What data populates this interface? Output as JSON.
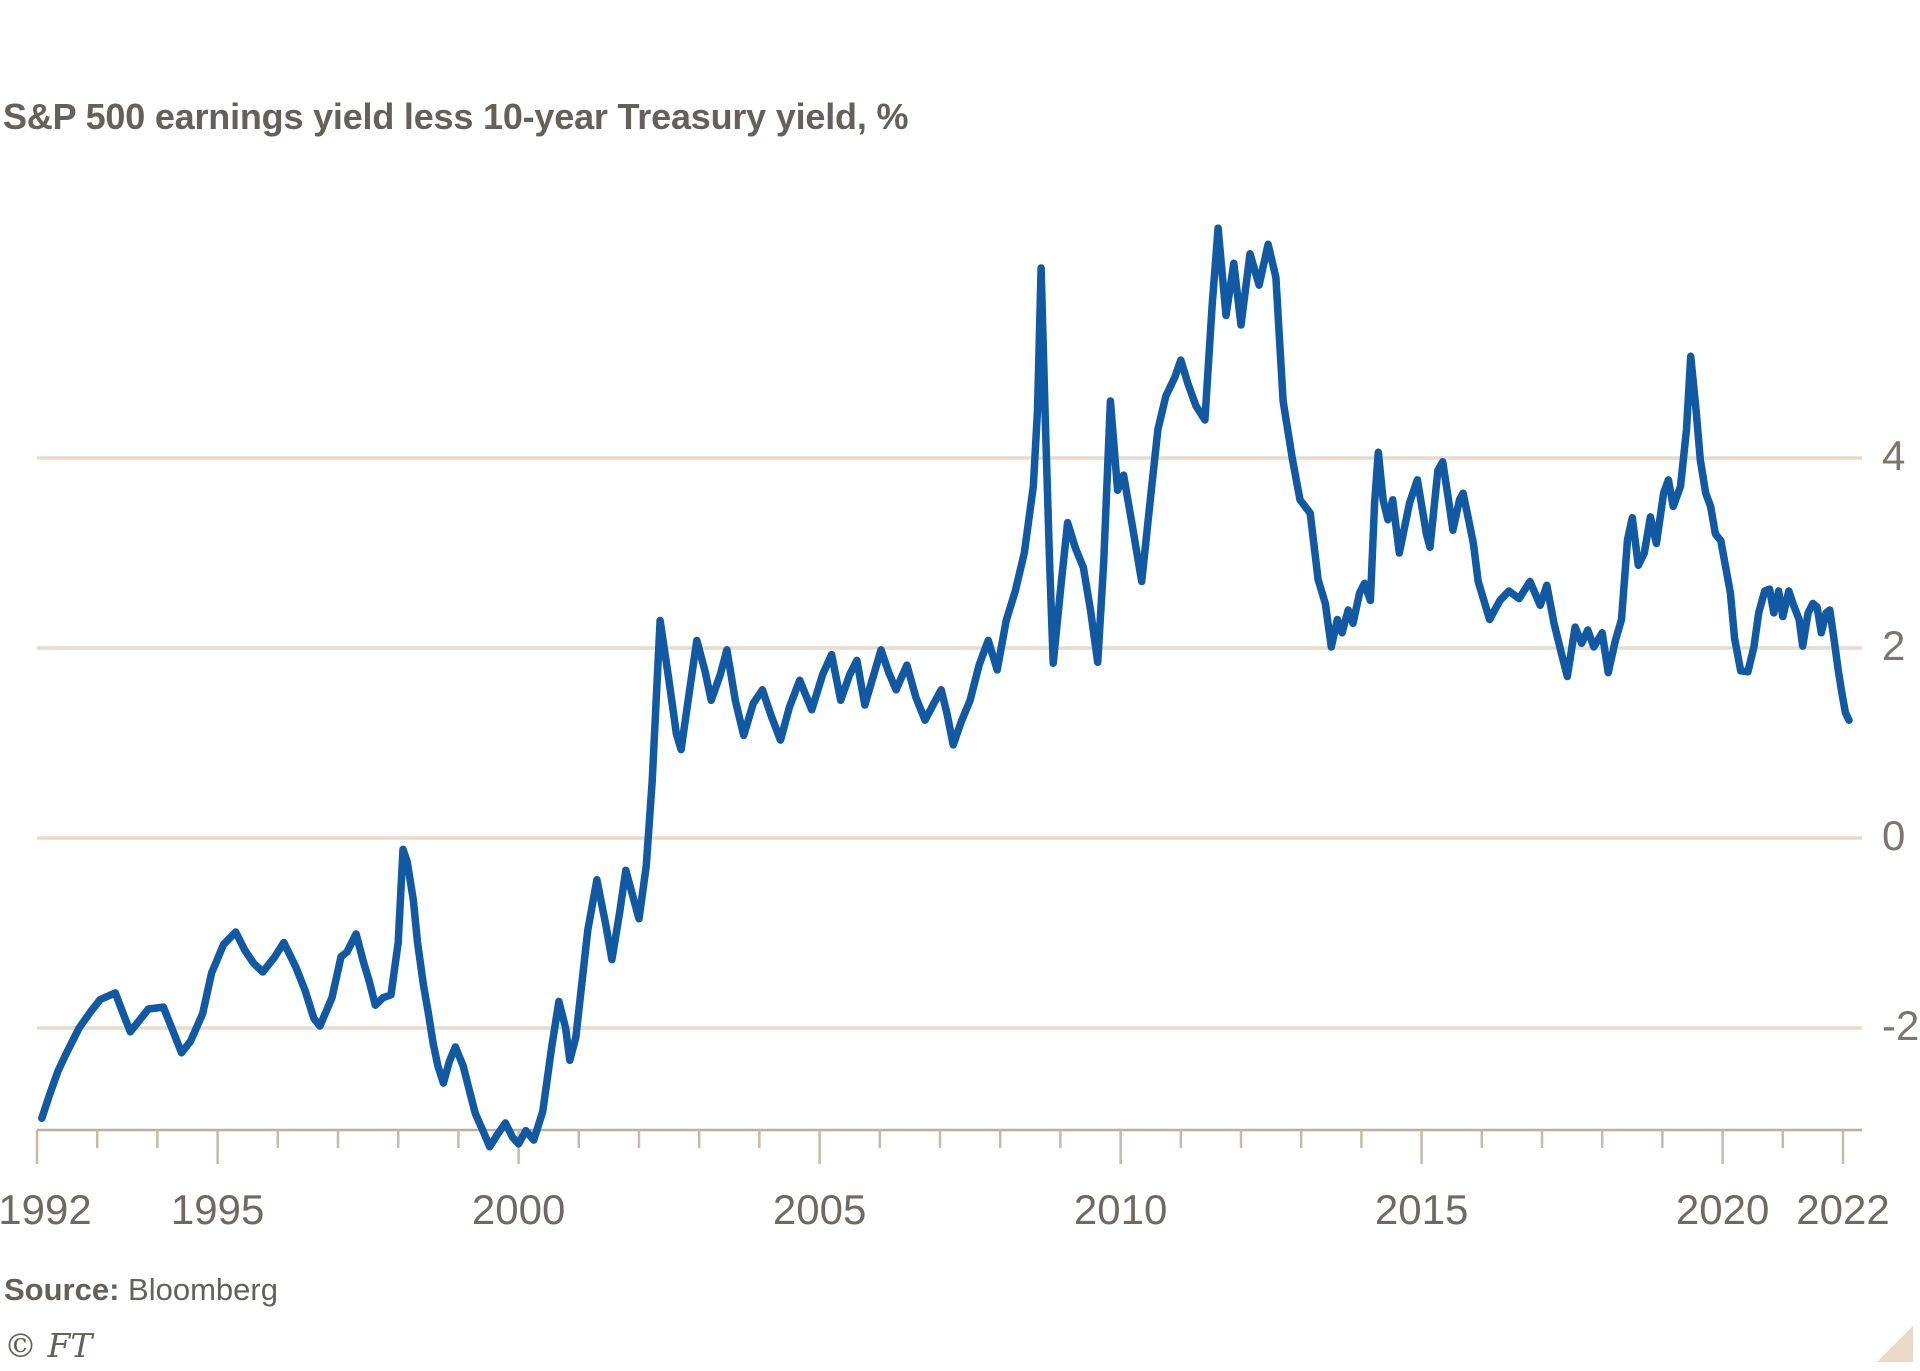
{
  "header": {
    "title": "S&P 500 earnings yield less 10-year Treasury yield, %"
  },
  "footer": {
    "source_prefix": "Source:",
    "source_name": "Bloomberg",
    "ft_mark": "© FT"
  },
  "colors": {
    "background": "#ffffff",
    "line": "#1259a3",
    "gridline": "#e7dccc",
    "axis": "#b9ae9f",
    "tick": "#c6bbab",
    "title_text": "#66605b",
    "label_text": "#6f6962",
    "corner_triangle": "#ead9c8"
  },
  "chart_data": {
    "type": "line",
    "title": "S&P 500 earnings yield less 10-year Treasury yield, %",
    "xlabel": "",
    "ylabel": "%",
    "legend": "none",
    "grid": "horizontal-only",
    "xlim": [
      1992,
      2022.4
    ],
    "ylim": [
      -3.05,
      6.6
    ],
    "y_axis": {
      "side": "right",
      "gridline_values": [
        4,
        2,
        0,
        -2
      ],
      "labels": [
        "4",
        "2",
        "0",
        "-2"
      ]
    },
    "x_axis": {
      "tick_years_minor": [
        1992,
        1993,
        1994,
        1995,
        1996,
        1997,
        1998,
        1999,
        2000,
        2001,
        2002,
        2003,
        2004,
        2005,
        2006,
        2007,
        2008,
        2009,
        2010,
        2011,
        2012,
        2013,
        2014,
        2015,
        2016,
        2017,
        2018,
        2019,
        2020,
        2021,
        2022
      ],
      "tick_years_major": [
        1992,
        1995,
        2000,
        2005,
        2010,
        2015,
        2020,
        2022
      ],
      "labels": [
        "1992",
        "1995",
        "2000",
        "2005",
        "2010",
        "2015",
        "2020",
        "2022"
      ],
      "label_years": [
        1992,
        1995,
        2000,
        2005,
        2010,
        2015,
        2020,
        2022
      ]
    },
    "series": [
      {
        "name": "S&P 500 earnings yield less 10-year Treasury yield (%)",
        "points": [
          [
            1992.08,
            -2.95
          ],
          [
            1992.2,
            -2.72
          ],
          [
            1992.35,
            -2.45
          ],
          [
            1992.5,
            -2.25
          ],
          [
            1992.7,
            -2.0
          ],
          [
            1992.9,
            -1.82
          ],
          [
            1993.05,
            -1.7
          ],
          [
            1993.3,
            -1.63
          ],
          [
            1993.45,
            -1.88
          ],
          [
            1993.55,
            -2.04
          ],
          [
            1993.7,
            -1.92
          ],
          [
            1993.85,
            -1.8
          ],
          [
            1994.1,
            -1.78
          ],
          [
            1994.25,
            -2.02
          ],
          [
            1994.4,
            -2.26
          ],
          [
            1994.55,
            -2.14
          ],
          [
            1994.75,
            -1.85
          ],
          [
            1994.9,
            -1.42
          ],
          [
            1995.1,
            -1.12
          ],
          [
            1995.3,
            -0.99
          ],
          [
            1995.45,
            -1.18
          ],
          [
            1995.6,
            -1.32
          ],
          [
            1995.75,
            -1.41
          ],
          [
            1995.95,
            -1.25
          ],
          [
            1996.1,
            -1.1
          ],
          [
            1996.3,
            -1.36
          ],
          [
            1996.45,
            -1.6
          ],
          [
            1996.6,
            -1.9
          ],
          [
            1996.7,
            -1.98
          ],
          [
            1996.9,
            -1.68
          ],
          [
            1997.05,
            -1.25
          ],
          [
            1997.15,
            -1.2
          ],
          [
            1997.3,
            -1.01
          ],
          [
            1997.42,
            -1.3
          ],
          [
            1997.52,
            -1.51
          ],
          [
            1997.62,
            -1.76
          ],
          [
            1997.75,
            -1.68
          ],
          [
            1997.88,
            -1.65
          ],
          [
            1998.0,
            -1.1
          ],
          [
            1998.08,
            -0.12
          ],
          [
            1998.15,
            -0.25
          ],
          [
            1998.25,
            -0.65
          ],
          [
            1998.32,
            -1.1
          ],
          [
            1998.42,
            -1.55
          ],
          [
            1998.5,
            -1.84
          ],
          [
            1998.58,
            -2.16
          ],
          [
            1998.66,
            -2.4
          ],
          [
            1998.75,
            -2.58
          ],
          [
            1998.85,
            -2.35
          ],
          [
            1998.95,
            -2.2
          ],
          [
            1999.08,
            -2.4
          ],
          [
            1999.18,
            -2.65
          ],
          [
            1999.28,
            -2.9
          ],
          [
            1999.42,
            -3.1
          ],
          [
            1999.52,
            -3.25
          ],
          [
            1999.65,
            -3.12
          ],
          [
            1999.78,
            -3.0
          ],
          [
            1999.9,
            -3.15
          ],
          [
            2000.0,
            -3.22
          ],
          [
            2000.12,
            -3.08
          ],
          [
            2000.25,
            -3.18
          ],
          [
            2000.4,
            -2.88
          ],
          [
            2000.55,
            -2.2
          ],
          [
            2000.67,
            -1.72
          ],
          [
            2000.78,
            -2.0
          ],
          [
            2000.85,
            -2.34
          ],
          [
            2000.95,
            -2.1
          ],
          [
            2001.15,
            -0.97
          ],
          [
            2001.3,
            -0.44
          ],
          [
            2001.45,
            -0.92
          ],
          [
            2001.55,
            -1.28
          ],
          [
            2001.68,
            -0.78
          ],
          [
            2001.78,
            -0.34
          ],
          [
            2001.9,
            -0.62
          ],
          [
            2002.0,
            -0.85
          ],
          [
            2002.12,
            -0.3
          ],
          [
            2002.22,
            0.6
          ],
          [
            2002.35,
            2.29
          ],
          [
            2002.5,
            1.65
          ],
          [
            2002.62,
            1.1
          ],
          [
            2002.7,
            0.93
          ],
          [
            2002.85,
            1.6
          ],
          [
            2002.96,
            2.08
          ],
          [
            2003.1,
            1.75
          ],
          [
            2003.2,
            1.45
          ],
          [
            2003.35,
            1.72
          ],
          [
            2003.46,
            1.98
          ],
          [
            2003.6,
            1.45
          ],
          [
            2003.74,
            1.08
          ],
          [
            2003.9,
            1.42
          ],
          [
            2004.05,
            1.56
          ],
          [
            2004.2,
            1.28
          ],
          [
            2004.35,
            1.03
          ],
          [
            2004.5,
            1.38
          ],
          [
            2004.67,
            1.66
          ],
          [
            2004.87,
            1.35
          ],
          [
            2005.05,
            1.72
          ],
          [
            2005.2,
            1.93
          ],
          [
            2005.35,
            1.45
          ],
          [
            2005.5,
            1.72
          ],
          [
            2005.62,
            1.87
          ],
          [
            2005.75,
            1.4
          ],
          [
            2005.9,
            1.72
          ],
          [
            2006.02,
            1.98
          ],
          [
            2006.15,
            1.74
          ],
          [
            2006.27,
            1.56
          ],
          [
            2006.45,
            1.82
          ],
          [
            2006.6,
            1.48
          ],
          [
            2006.75,
            1.24
          ],
          [
            2006.9,
            1.42
          ],
          [
            2007.02,
            1.56
          ],
          [
            2007.12,
            1.3
          ],
          [
            2007.22,
            0.98
          ],
          [
            2007.35,
            1.22
          ],
          [
            2007.5,
            1.45
          ],
          [
            2007.65,
            1.82
          ],
          [
            2007.8,
            2.08
          ],
          [
            2007.95,
            1.77
          ],
          [
            2008.1,
            2.29
          ],
          [
            2008.25,
            2.6
          ],
          [
            2008.4,
            3.0
          ],
          [
            2008.55,
            3.7
          ],
          [
            2008.62,
            4.5
          ],
          [
            2008.68,
            6.0
          ],
          [
            2008.75,
            4.4
          ],
          [
            2008.82,
            2.9
          ],
          [
            2008.88,
            1.84
          ],
          [
            2009.0,
            2.6
          ],
          [
            2009.12,
            3.32
          ],
          [
            2009.25,
            3.05
          ],
          [
            2009.38,
            2.85
          ],
          [
            2009.5,
            2.4
          ],
          [
            2009.62,
            1.85
          ],
          [
            2009.72,
            2.9
          ],
          [
            2009.83,
            4.6
          ],
          [
            2009.95,
            3.66
          ],
          [
            2010.05,
            3.82
          ],
          [
            2010.2,
            3.27
          ],
          [
            2010.35,
            2.7
          ],
          [
            2010.5,
            3.6
          ],
          [
            2010.62,
            4.3
          ],
          [
            2010.75,
            4.65
          ],
          [
            2010.9,
            4.85
          ],
          [
            2011.0,
            5.03
          ],
          [
            2011.12,
            4.78
          ],
          [
            2011.25,
            4.55
          ],
          [
            2011.4,
            4.4
          ],
          [
            2011.52,
            5.6
          ],
          [
            2011.62,
            6.42
          ],
          [
            2011.75,
            5.5
          ],
          [
            2011.88,
            6.05
          ],
          [
            2012.0,
            5.4
          ],
          [
            2012.15,
            6.15
          ],
          [
            2012.3,
            5.82
          ],
          [
            2012.45,
            6.25
          ],
          [
            2012.58,
            5.9
          ],
          [
            2012.7,
            4.6
          ],
          [
            2012.85,
            4.0
          ],
          [
            2012.98,
            3.56
          ],
          [
            2013.15,
            3.42
          ],
          [
            2013.28,
            2.72
          ],
          [
            2013.4,
            2.47
          ],
          [
            2013.5,
            2.01
          ],
          [
            2013.6,
            2.3
          ],
          [
            2013.68,
            2.16
          ],
          [
            2013.78,
            2.4
          ],
          [
            2013.86,
            2.26
          ],
          [
            2013.97,
            2.58
          ],
          [
            2014.05,
            2.68
          ],
          [
            2014.15,
            2.5
          ],
          [
            2014.22,
            3.53
          ],
          [
            2014.28,
            4.06
          ],
          [
            2014.36,
            3.56
          ],
          [
            2014.44,
            3.35
          ],
          [
            2014.52,
            3.56
          ],
          [
            2014.63,
            3.0
          ],
          [
            2014.8,
            3.53
          ],
          [
            2014.93,
            3.77
          ],
          [
            2015.08,
            3.2
          ],
          [
            2015.14,
            3.06
          ],
          [
            2015.27,
            3.87
          ],
          [
            2015.35,
            3.96
          ],
          [
            2015.44,
            3.59
          ],
          [
            2015.52,
            3.24
          ],
          [
            2015.63,
            3.56
          ],
          [
            2015.69,
            3.63
          ],
          [
            2015.78,
            3.35
          ],
          [
            2015.86,
            3.1
          ],
          [
            2015.94,
            2.7
          ],
          [
            2016.13,
            2.3
          ],
          [
            2016.3,
            2.5
          ],
          [
            2016.45,
            2.6
          ],
          [
            2016.62,
            2.52
          ],
          [
            2016.8,
            2.7
          ],
          [
            2016.97,
            2.45
          ],
          [
            2017.08,
            2.66
          ],
          [
            2017.2,
            2.26
          ],
          [
            2017.32,
            1.95
          ],
          [
            2017.42,
            1.7
          ],
          [
            2017.55,
            2.22
          ],
          [
            2017.66,
            2.05
          ],
          [
            2017.76,
            2.19
          ],
          [
            2017.86,
            2.01
          ],
          [
            2018.0,
            2.16
          ],
          [
            2018.1,
            1.74
          ],
          [
            2018.22,
            2.08
          ],
          [
            2018.32,
            2.3
          ],
          [
            2018.42,
            3.14
          ],
          [
            2018.5,
            3.37
          ],
          [
            2018.6,
            2.87
          ],
          [
            2018.7,
            3.0
          ],
          [
            2018.8,
            3.38
          ],
          [
            2018.9,
            3.1
          ],
          [
            2019.02,
            3.63
          ],
          [
            2019.1,
            3.77
          ],
          [
            2019.18,
            3.49
          ],
          [
            2019.3,
            3.7
          ],
          [
            2019.4,
            4.3
          ],
          [
            2019.47,
            5.07
          ],
          [
            2019.56,
            4.5
          ],
          [
            2019.63,
            3.98
          ],
          [
            2019.72,
            3.63
          ],
          [
            2019.8,
            3.49
          ],
          [
            2019.88,
            3.2
          ],
          [
            2019.97,
            3.13
          ],
          [
            2020.06,
            2.82
          ],
          [
            2020.13,
            2.58
          ],
          [
            2020.2,
            2.1
          ],
          [
            2020.3,
            1.76
          ],
          [
            2020.42,
            1.75
          ],
          [
            2020.52,
            2.01
          ],
          [
            2020.6,
            2.37
          ],
          [
            2020.7,
            2.6
          ],
          [
            2020.78,
            2.62
          ],
          [
            2020.85,
            2.37
          ],
          [
            2020.93,
            2.6
          ],
          [
            2021.0,
            2.33
          ],
          [
            2021.1,
            2.6
          ],
          [
            2021.18,
            2.45
          ],
          [
            2021.27,
            2.3
          ],
          [
            2021.33,
            2.02
          ],
          [
            2021.42,
            2.37
          ],
          [
            2021.5,
            2.47
          ],
          [
            2021.57,
            2.43
          ],
          [
            2021.64,
            2.16
          ],
          [
            2021.72,
            2.37
          ],
          [
            2021.78,
            2.4
          ],
          [
            2021.86,
            2.05
          ],
          [
            2021.92,
            1.77
          ],
          [
            2021.98,
            1.53
          ],
          [
            2022.04,
            1.32
          ],
          [
            2022.1,
            1.24
          ]
        ]
      }
    ]
  }
}
